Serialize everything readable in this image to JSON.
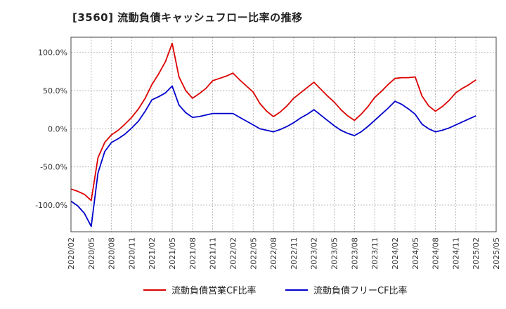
{
  "title": "[3560]  流動負債キャッシュフロー比率の推移",
  "chart_data": {
    "type": "line",
    "title": "[3560]  流動負債キャッシュフロー比率の推移",
    "xlabel": "",
    "ylabel": "",
    "grid": true,
    "legend_position": "bottom",
    "ylim": [
      -135,
      120
    ],
    "y_ticks": [
      {
        "value": 100,
        "label": "100.0%"
      },
      {
        "value": 50,
        "label": "50.0%"
      },
      {
        "value": 0,
        "label": "0.0%"
      },
      {
        "value": -50,
        "label": "-50.0%"
      },
      {
        "value": -100,
        "label": "-100.0%"
      }
    ],
    "x_ticks": [
      "2020/02",
      "2020/05",
      "2020/08",
      "2020/11",
      "2021/02",
      "2021/05",
      "2021/08",
      "2021/11",
      "2022/02",
      "2022/05",
      "2022/08",
      "2022/11",
      "2023/02",
      "2023/05",
      "2023/08",
      "2023/11",
      "2024/02",
      "2024/05",
      "2024/08",
      "2024/11",
      "2025/02",
      "2025/05"
    ],
    "x": [
      "2020/02",
      "2020/03",
      "2020/04",
      "2020/05",
      "2020/06",
      "2020/07",
      "2020/08",
      "2020/09",
      "2020/10",
      "2020/11",
      "2020/12",
      "2021/01",
      "2021/02",
      "2021/03",
      "2021/04",
      "2021/05",
      "2021/06",
      "2021/07",
      "2021/08",
      "2021/09",
      "2021/10",
      "2021/11",
      "2021/12",
      "2022/01",
      "2022/02",
      "2022/03",
      "2022/04",
      "2022/05",
      "2022/06",
      "2022/07",
      "2022/08",
      "2022/09",
      "2022/10",
      "2022/11",
      "2022/12",
      "2023/01",
      "2023/02",
      "2023/03",
      "2023/04",
      "2023/05",
      "2023/06",
      "2023/07",
      "2023/08",
      "2023/09",
      "2023/10",
      "2023/11",
      "2023/12",
      "2024/01",
      "2024/02",
      "2024/03",
      "2024/04",
      "2024/05",
      "2024/06",
      "2024/07",
      "2024/08",
      "2024/09",
      "2024/10",
      "2024/11",
      "2024/12",
      "2025/01",
      "2025/02"
    ],
    "series": [
      {
        "name": "流動負債営業CF比率",
        "color": "#dd0000",
        "values": [
          -79,
          -82,
          -86,
          -94,
          -38,
          -18,
          -8,
          -2,
          6,
          15,
          26,
          40,
          58,
          72,
          88,
          112,
          68,
          50,
          40,
          46,
          53,
          63,
          66,
          69,
          73,
          64,
          56,
          48,
          33,
          23,
          16,
          22,
          30,
          40,
          47,
          54,
          61,
          52,
          43,
          35,
          25,
          17,
          11,
          19,
          29,
          41,
          49,
          58,
          66,
          67,
          67,
          68,
          43,
          30,
          23,
          29,
          37,
          47,
          53,
          58,
          64
        ]
      },
      {
        "name": "流動負債フリーCF比率",
        "color": "#0000cc",
        "values": [
          -95,
          -101,
          -111,
          -128,
          -58,
          -30,
          -18,
          -13,
          -7,
          1,
          10,
          23,
          38,
          42,
          47,
          56,
          31,
          21,
          15,
          16,
          18,
          20,
          20,
          20,
          20,
          15,
          10,
          5,
          0,
          -2,
          -4,
          -1,
          3,
          8,
          14,
          19,
          25,
          18,
          11,
          4,
          -2,
          -6,
          -9,
          -4,
          3,
          11,
          19,
          27,
          36,
          32,
          26,
          19,
          6,
          0,
          -4,
          -2,
          1,
          5,
          9,
          13,
          17
        ]
      }
    ]
  }
}
